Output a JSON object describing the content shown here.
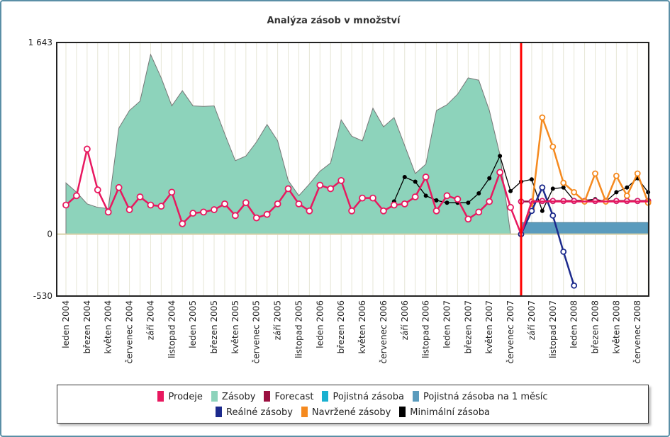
{
  "title": "Analýza zásob v množství",
  "colors": {
    "prodeje": "#e8185f",
    "zasoby": "#8dd3bb",
    "forecast": "#9b1040",
    "pojistna": "#1ab0d0",
    "pojistna_mesic": "#5a9bbd",
    "realne": "#1c2a8c",
    "navrzene": "#f58a1f",
    "minimalni": "#000000",
    "marker": "#ff0000"
  },
  "chart_data": {
    "type": "area",
    "title": "Analýza zásob v množství",
    "ylim": [
      -530,
      1643
    ],
    "ytick_labels": [
      "1 643",
      "0",
      "-530"
    ],
    "yticks": [
      1643,
      0,
      -530
    ],
    "x_tick_labels": [
      "leden 2004",
      "březen 2004",
      "květen 2004",
      "červenec 2004",
      "září 2004",
      "listopad 2004",
      "leden 2005",
      "březen 2005",
      "květen 2005",
      "červenec 2005",
      "září 2005",
      "listopad 2005",
      "leden 2006",
      "březen 2006",
      "květen 2006",
      "červenec 2006",
      "září 2006",
      "listopad 2006",
      "leden 2007",
      "březen 2007",
      "květen 2007",
      "červenec 2007",
      "září 2007",
      "listopad 2007",
      "leden 2008",
      "březen 2008",
      "květen 2008",
      "červenec 2008"
    ],
    "n_months": 56,
    "marker_month": 43,
    "legend": [
      "Prodeje",
      "Zásoby",
      "Forecast",
      "Pojistná zásoba",
      "Pojistná zásoba na 1 měsíc",
      "Reálné zásoby",
      "Navržené zásoby",
      "Minimální zásoba"
    ],
    "series": [
      {
        "name": "Zásoby",
        "start": 0,
        "values": [
          440,
          360,
          260,
          230,
          220,
          910,
          1060,
          1140,
          1540,
          1340,
          1100,
          1230,
          1100,
          1095,
          1100,
          860,
          630,
          670,
          790,
          940,
          800,
          460,
          330,
          430,
          540,
          610,
          980,
          840,
          800,
          1080,
          920,
          1000,
          760,
          520,
          600,
          1060,
          1110,
          1200,
          1340,
          1320,
          1060,
          680,
          0
        ]
      },
      {
        "name": "Prodeje",
        "start": 0,
        "values": [
          250,
          330,
          730,
          380,
          190,
          400,
          210,
          320,
          250,
          240,
          360,
          90,
          180,
          190,
          210,
          260,
          160,
          270,
          140,
          170,
          260,
          390,
          260,
          200,
          420,
          390,
          460,
          200,
          310,
          310,
          200,
          250,
          260,
          320,
          490,
          200,
          330,
          300,
          130,
          190,
          280,
          530,
          230,
          0,
          280,
          280,
          280,
          280,
          280,
          280,
          280,
          280,
          280,
          280,
          280,
          280
        ]
      },
      {
        "name": "Forecast",
        "start": 43,
        "values": [
          280,
          280,
          285,
          285,
          285,
          285,
          285,
          285,
          285,
          285,
          285,
          285,
          285
        ]
      },
      {
        "name": "Pojistná zásoba na 1 měsíc",
        "start": 43,
        "values": [
          100,
          100,
          100,
          100,
          100,
          100,
          100,
          100,
          100,
          100,
          100,
          100,
          100
        ]
      },
      {
        "name": "Reálné zásoby",
        "start": 43,
        "values": [
          0,
          200,
          400,
          160,
          -150,
          -440
        ]
      },
      {
        "name": "Navržené zásoby",
        "start": 43,
        "values": [
          0,
          220,
          1000,
          750,
          440,
          360,
          280,
          520,
          280,
          500,
          330,
          520,
          270
        ]
      },
      {
        "name": "Minimální zásoba",
        "start": 31,
        "values": [
          280,
          490,
          450,
          330,
          290,
          270,
          270,
          270,
          350,
          480,
          670,
          370,
          450,
          470,
          200,
          390,
          400,
          290,
          290,
          300,
          280,
          360,
          400,
          480,
          360
        ]
      }
    ]
  },
  "legend_rows": [
    [
      {
        "key": "prodeje",
        "label": "Prodeje"
      },
      {
        "key": "zasoby",
        "label": "Zásoby"
      },
      {
        "key": "forecast",
        "label": "Forecast"
      },
      {
        "key": "pojistna",
        "label": "Pojistná zásoba"
      },
      {
        "key": "pojistna_mesic",
        "label": "Pojistná zásoba na 1 měsíc"
      }
    ],
    [
      {
        "key": "realne",
        "label": "Reálné zásoby"
      },
      {
        "key": "navrzene",
        "label": "Navržené zásoby"
      },
      {
        "key": "minimalni",
        "label": "Minimální zásoba"
      }
    ]
  ]
}
